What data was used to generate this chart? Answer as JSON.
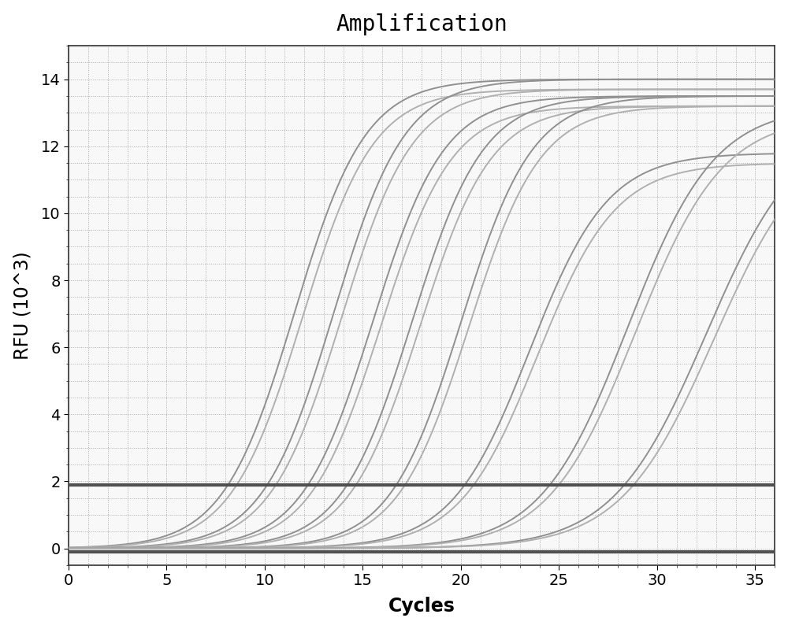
{
  "title": "Amplification",
  "xlabel": "Cycles",
  "ylabel": "RFU (10^3)",
  "xlim": [
    0,
    36
  ],
  "ylim": [
    -0.5,
    15.0
  ],
  "xticks": [
    0,
    5,
    10,
    15,
    20,
    25,
    30,
    35
  ],
  "yticks": [
    0,
    2,
    4,
    6,
    8,
    10,
    12,
    14
  ],
  "threshold_y": 1.9,
  "baseline_y": -0.1,
  "curve_color": "#909090",
  "curve_color2": "#b0b0b0",
  "threshold_color": "#505050",
  "baseline_color": "#505050",
  "background_color": "#ffffff",
  "plot_bg_color": "#f8f8f8",
  "curve_midpoints": [
    11.5,
    13.5,
    15.5,
    17.5,
    20.0,
    23.5,
    28.5,
    32.5
  ],
  "curve_max_values": [
    14.0,
    14.0,
    13.5,
    13.5,
    13.5,
    11.8,
    13.2,
    12.8
  ],
  "curve_steepness": [
    0.55,
    0.55,
    0.55,
    0.55,
    0.55,
    0.5,
    0.45,
    0.42
  ],
  "line_width": 1.4,
  "threshold_lw": 3.0,
  "baseline_lw": 3.0,
  "title_fontsize": 20,
  "label_fontsize": 17,
  "tick_fontsize": 14,
  "figsize": [
    10.0,
    7.99
  ],
  "dpi": 100
}
